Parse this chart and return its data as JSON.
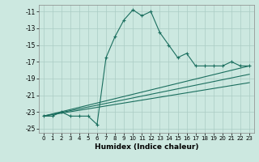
{
  "xlabel": "Humidex (Indice chaleur)",
  "bg_color": "#cce8e0",
  "grid_color": "#aaccC4",
  "line_color": "#1a6e5e",
  "xlim": [
    -0.5,
    23.5
  ],
  "ylim": [
    -25.5,
    -10.2
  ],
  "yticks": [
    -25,
    -23,
    -21,
    -19,
    -17,
    -15,
    -13,
    -11
  ],
  "xticks": [
    0,
    1,
    2,
    3,
    4,
    5,
    6,
    7,
    8,
    9,
    10,
    11,
    12,
    13,
    14,
    15,
    16,
    17,
    18,
    19,
    20,
    21,
    22,
    23
  ],
  "series": [
    {
      "x": [
        0,
        1,
        2,
        3,
        4,
        5,
        6,
        7,
        8,
        9,
        10,
        11,
        12,
        13,
        14,
        15,
        16,
        17,
        18,
        19,
        20,
        21,
        22,
        23
      ],
      "y": [
        -23.5,
        -23.5,
        -23.0,
        -23.5,
        -23.5,
        -23.5,
        -24.5,
        -16.5,
        -14.0,
        -12.0,
        -10.8,
        -11.5,
        -11.0,
        -13.5,
        -15.0,
        -16.5,
        -16.0,
        -17.5,
        -17.5,
        -17.5,
        -17.5,
        -17.0,
        -17.5,
        -17.5
      ],
      "marker": "+"
    },
    {
      "x": [
        0,
        23
      ],
      "y": [
        -23.5,
        -17.5
      ],
      "marker": null
    },
    {
      "x": [
        0,
        23
      ],
      "y": [
        -23.5,
        -18.5
      ],
      "marker": null
    },
    {
      "x": [
        0,
        23
      ],
      "y": [
        -23.5,
        -19.5
      ],
      "marker": null
    }
  ]
}
